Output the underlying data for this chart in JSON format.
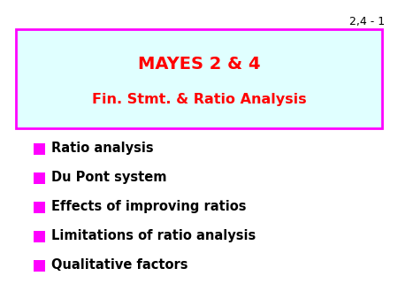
{
  "slide_number": "2,4 - 1",
  "title_line1": "MAYES 2 & 4",
  "title_line2": "Fin. Stmt. & Ratio Analysis",
  "title_color": "#ff0000",
  "title_bg_color": "#e0ffff",
  "title_border_color": "#ff00ff",
  "bullet_color": "#ff00ff",
  "bullet_text_color": "#000000",
  "bullets": [
    "Ratio analysis",
    "Du Pont system",
    "Effects of improving ratios",
    "Limitations of ratio analysis",
    "Qualitative factors"
  ],
  "bg_color": "#ffffff",
  "slide_num_color": "#000000",
  "title_fontsize": 14,
  "subtitle_fontsize": 11.5,
  "bullet_fontsize": 10.5,
  "slide_num_fontsize": 9
}
